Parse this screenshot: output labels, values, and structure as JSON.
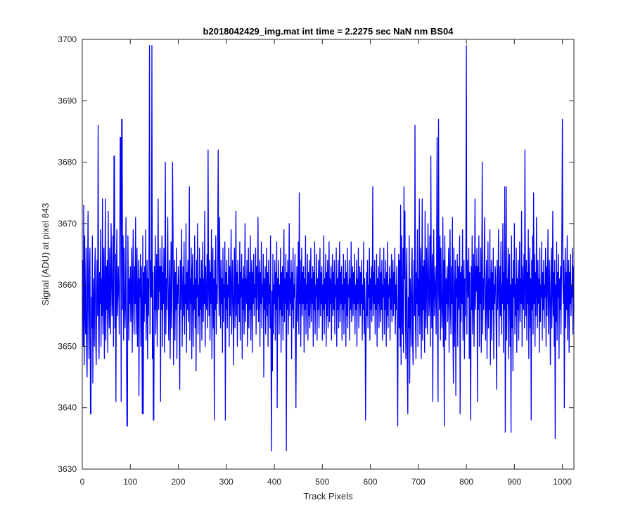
{
  "chart_data": {
    "type": "line",
    "title": "b2018042429_img.mat int time = 2.2275 sec  NaN nm BS04",
    "xlabel": "Track Pixels",
    "ylabel": "Signal (ADU) at pixel 843",
    "xlim": [
      0,
      1024
    ],
    "ylim": [
      3630,
      3700
    ],
    "x_ticks": [
      0,
      100,
      200,
      300,
      400,
      500,
      600,
      700,
      800,
      900,
      1000
    ],
    "y_ticks": [
      3630,
      3640,
      3650,
      3660,
      3670,
      3680,
      3690,
      3700
    ],
    "grid": false,
    "series": [
      {
        "color": "#0000ff",
        "x_start": 1,
        "x_step": 1,
        "values": [
          3664,
          3650,
          3673,
          3647,
          3668,
          3655,
          3652,
          3666,
          3649,
          3645,
          3661,
          3672,
          3656,
          3648,
          3662,
          3666,
          3646,
          3639,
          3658,
          3653,
          3668,
          3644,
          3661,
          3657,
          3650,
          3663,
          3666,
          3651,
          3647,
          3659,
          3664,
          3655,
          3686,
          3653,
          3648,
          3662,
          3657,
          3669,
          3650,
          3661,
          3655,
          3674,
          3652,
          3660,
          3666,
          3648,
          3658,
          3674,
          3651,
          3663,
          3656,
          3664,
          3649,
          3672,
          3657,
          3653,
          3666,
          3660,
          3652,
          3670,
          3663,
          3655,
          3658,
          3668,
          3650,
          3681,
          3660,
          3653,
          3665,
          3641,
          3661,
          3669,
          3655,
          3658,
          3663,
          3659,
          3652,
          3664,
          3684,
          3653,
          3641,
          3687,
          3660,
          3656,
          3668,
          3651,
          3666,
          3659,
          3653,
          3657,
          3671,
          3650,
          3664,
          3637,
          3668,
          3660,
          3651,
          3661,
          3657,
          3663,
          3654,
          3659,
          3666,
          3649,
          3661,
          3669,
          3656,
          3652,
          3663,
          3657,
          3671,
          3652,
          3660,
          3666,
          3650,
          3658,
          3664,
          3642,
          3661,
          3658,
          3665,
          3650,
          3663,
          3656,
          3660,
          3668,
          3639,
          3662,
          3654,
          3663,
          3657,
          3669,
          3651,
          3659,
          3664,
          3648,
          3661,
          3655,
          3667,
          3699,
          3652,
          3664,
          3659,
          3658,
          3666,
          3648,
          3662,
          3651,
          3638,
          3663,
          3656,
          3668,
          3652,
          3659,
          3665,
          3650,
          3661,
          3674,
          3656,
          3663,
          3659,
          3666,
          3641,
          3663,
          3656,
          3668,
          3650,
          3662,
          3657,
          3666,
          3649,
          3661,
          3680,
          3652,
          3661,
          3656,
          3663,
          3671,
          3657,
          3651,
          3660,
          3664,
          3648,
          3658,
          3667,
          3653,
          3661,
          3656,
          3669,
          3647,
          3659,
          3664,
          3651,
          3662,
          3656,
          3666,
          3648,
          3660,
          3657,
          3663,
          3661,
          3653,
          3643,
          3664,
          3656,
          3661,
          3669,
          3650,
          3658,
          3663,
          3655,
          3667,
          3652,
          3660,
          3657,
          3670,
          3649,
          3662,
          3656,
          3664,
          3654,
          3659,
          3676,
          3651,
          3661,
          3657,
          3666,
          3648,
          3662,
          3665,
          3650,
          3660,
          3656,
          3668,
          3653,
          3661,
          3646,
          3664,
          3658,
          3670,
          3652,
          3660,
          3655,
          3666,
          3649,
          3661,
          3656,
          3664,
          3651,
          3659,
          3667,
          3654,
          3661,
          3657,
          3672,
          3650,
          3663,
          3658,
          3656,
          3665,
          3653,
          3682,
          3660,
          3655,
          3664,
          3651,
          3662,
          3657,
          3669,
          3648,
          3660,
          3666,
          3653,
          3661,
          3638,
          3664,
          3656,
          3668,
          3652,
          3660,
          3657,
          3665,
          3650,
          3662,
          3655,
          3671,
          3659,
          3653,
          3664,
          3657,
          3661,
          3649,
          3666,
          3654,
          3660,
          3658,
          3667,
          3651,
          3662,
          3656,
          3664,
          3653,
          3660,
          3658,
          3666,
          3650,
          3663,
          3655,
          3661,
          3669,
          3652,
          3658,
          3664,
          3656,
          3647,
          3661,
          3666,
          3653,
          3659,
          3672,
          3655,
          3662,
          3650,
          3664,
          3657,
          3660,
          3654,
          3667,
          3651,
          3662,
          3658,
          3665,
          3648,
          3661,
          3656,
          3663,
          3652,
          3660,
          3670,
          3654,
          3661,
          3657,
          3664,
          3650,
          3659,
          3666,
          3653,
          3662,
          3656,
          3668,
          3651,
          3660,
          3664,
          3649,
          3662,
          3657,
          3665,
          3655,
          3660,
          3658,
          3666,
          3652,
          3663,
          3656,
          3661,
          3671,
          3654,
          3659,
          3664,
          3650,
          3662,
          3657,
          3667,
          3653,
          3660,
          3658,
          3665,
          3645,
          3661,
          3656,
          3663,
          3652,
          3659,
          3666,
          3655,
          3662,
          3650,
          3664,
          3657,
          3660,
          3653,
          3668,
          3651,
          3633,
          3659,
          3646,
          3665,
          3652,
          3660,
          3657,
          3664,
          3651,
          3662,
          3656,
          3667,
          3640,
          3661,
          3658,
          3664,
          3652,
          3660,
          3656,
          3666,
          3649,
          3662,
          3655,
          3663,
          3651,
          3660,
          3669,
          3654,
          3661,
          3657,
          3665,
          3650,
          3662,
          3656,
          3664,
          3652,
          3659,
          3670,
          3655,
          3661,
          3657,
          3664,
          3648,
          3662,
          3656,
          3666,
          3653,
          3660,
          3658,
          3665,
          3651,
          3662,
          3656,
          3663,
          3654,
          3660,
          3667,
          3652,
          3661,
          3657,
          3664,
          3650,
          3659,
          3666,
          3655,
          3662,
          3657,
          3663,
          3649,
          3661,
          3656,
          3668,
          3652,
          3660,
          3657,
          3665,
          3651,
          3662,
          3655,
          3664,
          3653,
          3659,
          3666,
          3654,
          3661,
          3657,
          3663,
          3650,
          3662,
          3656,
          3667,
          3652,
          3660,
          3658,
          3665,
          3651,
          3661,
          3656,
          3664,
          3653,
          3659,
          3666,
          3655,
          3662,
          3657,
          3663,
          3651,
          3660,
          3656,
          3668,
          3652,
          3661,
          3657,
          3665,
          3650,
          3662,
          3655,
          3664,
          3653,
          3660,
          3667,
          3654,
          3661,
          3657,
          3663,
          3651,
          3659,
          3665,
          3655,
          3662,
          3656,
          3664,
          3652,
          3660,
          3658,
          3666,
          3650,
          3661,
          3656,
          3664,
          3653,
          3659,
          3667,
          3654,
          3662,
          3657,
          3663,
          3651,
          3660,
          3656,
          3665,
          3652,
          3661,
          3657,
          3664,
          3650,
          3662,
          3655,
          3666,
          3653,
          3660,
          3658,
          3664,
          3651,
          3661,
          3656,
          3667,
          3654,
          3659,
          3663,
          3655,
          3662,
          3657,
          3665,
          3652,
          3660,
          3656,
          3664,
          3650,
          3661,
          3657,
          3666,
          3653,
          3659,
          3663,
          3655,
          3662,
          3657,
          3664,
          3651,
          3660,
          3656,
          3667,
          3652,
          3661,
          3657,
          3665,
          3650,
          3662,
          3655,
          3664,
          3653,
          3660,
          3658,
          3666,
          3651,
          3661,
          3656,
          3663,
          3654,
          3659,
          3667,
          3655,
          3662,
          3657,
          3664,
          3652,
          3660,
          3656,
          3665,
          3650,
          3661,
          3657,
          3663,
          3653,
          3659,
          3666,
          3654,
          3662,
          3656,
          3664,
          3651,
          3660,
          3658,
          3666,
          3652,
          3661,
          3656,
          3664,
          3650,
          3662,
          3655,
          3667,
          3653,
          3660,
          3658,
          3663,
          3651,
          3661,
          3656,
          3665,
          3654,
          3659,
          3664,
          3655,
          3662,
          3657,
          3666,
          3652,
          3660,
          3656,
          3663,
          3650,
          3661,
          3657,
          3665,
          3653
        ]
      }
    ],
    "highlight_points": [
      [
        17,
        3639
      ],
      [
        33,
        3686
      ],
      [
        67,
        3681
      ],
      [
        80,
        3684
      ],
      [
        83,
        3687
      ],
      [
        93,
        3637
      ],
      [
        125,
        3639
      ],
      [
        145,
        3699
      ],
      [
        148,
        3638
      ],
      [
        188,
        3680
      ],
      [
        283,
        3682
      ],
      [
        298,
        3638
      ],
      [
        425,
        3633
      ],
      [
        445,
        3640
      ],
      [
        452,
        3675
      ],
      [
        590,
        3638
      ],
      [
        605,
        3676
      ],
      [
        657,
        3637
      ],
      [
        670,
        3676
      ],
      [
        773,
        3644
      ],
      [
        880,
        3676
      ],
      [
        881,
        3636
      ],
      [
        893,
        3636
      ],
      [
        940,
        3675
      ],
      [
        985,
        3635
      ],
      [
        1000,
        3687
      ],
      [
        1004,
        3640
      ]
    ]
  }
}
